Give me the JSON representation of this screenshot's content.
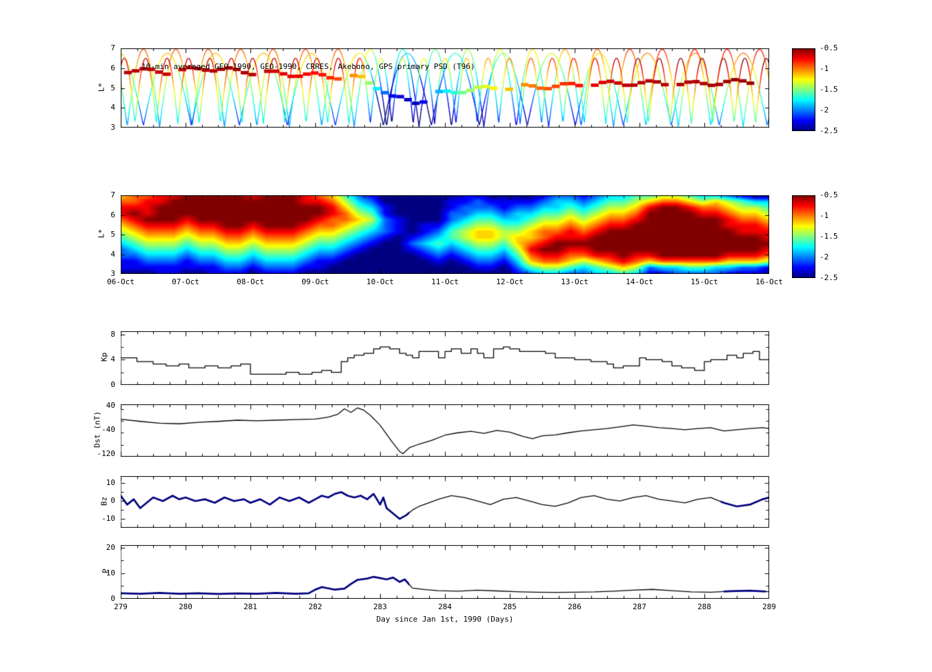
{
  "figure": {
    "xlabel": "Day since Jan 1st, 1990 (Days)",
    "background": "#ffffff"
  },
  "x_axis": {
    "min": 279,
    "max": 289,
    "tick_labels": [
      "279",
      "280",
      "281",
      "282",
      "283",
      "284",
      "285",
      "286",
      "287",
      "288",
      "289"
    ],
    "label": "Day since Jan 1st, 1990 (Days)"
  },
  "colorbar": {
    "min": -2.5,
    "max": -0.5,
    "tick_labels": [
      "-0.5",
      "-1",
      "-1.5",
      "-2",
      "-2.5"
    ],
    "colormap": "jet"
  },
  "chart_data": [
    {
      "id": "psd_orbit_tracks",
      "type": "scatter",
      "title": "10-min averaged GEO-1990, GEO-1990, CRRES, Akebono, GPS  primary PSD (T96)",
      "ylabel": "L*",
      "ylim": [
        3,
        7
      ],
      "yticks": [
        7,
        6,
        5,
        4,
        3
      ],
      "xlim": [
        279,
        289
      ],
      "colormap": "jet",
      "value_range": [
        -2.5,
        -0.5
      ],
      "value_timeline": [
        [
          279,
          0
        ],
        [
          282.6,
          0
        ],
        [
          283.1,
          -0.8
        ],
        [
          283.9,
          -0.6
        ],
        [
          285,
          -0.35
        ],
        [
          286.2,
          -0.1
        ],
        [
          287,
          0.1
        ],
        [
          289,
          0.15
        ]
      ],
      "orbits": [
        {
          "period": 0.5,
          "phase": 279.1,
          "Lmin": 3.05,
          "Lmax": 6.95,
          "vLow": -2.0,
          "vHigh": -0.9
        },
        {
          "period": 0.74,
          "phase": 279.35,
          "Lmin": 3.1,
          "Lmax": 6.75,
          "vLow": -2.2,
          "vHigh": -1.1
        },
        {
          "period": 0.33,
          "phase": 279.22,
          "Lmin": 3.2,
          "Lmax": 6.5,
          "vLow": -1.8,
          "vHigh": -0.6
        }
      ],
      "geo_band": {
        "segments": [
          [
            279.05,
            5.9,
            -0.6
          ],
          [
            279.8,
            5.8,
            -0.65
          ],
          [
            280.3,
            6.0,
            -0.6
          ],
          [
            281.0,
            5.8,
            -0.6
          ],
          [
            281.6,
            5.7,
            -0.7
          ],
          [
            282.2,
            5.6,
            -0.8
          ],
          [
            282.7,
            5.5,
            -1.1
          ],
          [
            283.0,
            5.0,
            -1.9
          ],
          [
            283.2,
            4.5,
            -2.3
          ],
          [
            283.6,
            4.3,
            -2.4
          ],
          [
            283.9,
            4.7,
            -1.9
          ],
          [
            284.3,
            4.9,
            -1.5
          ],
          [
            284.8,
            5.0,
            -1.2
          ],
          [
            285.3,
            5.05,
            -1.0
          ],
          [
            285.8,
            5.1,
            -0.85
          ],
          [
            286.3,
            5.2,
            -0.7
          ],
          [
            287.0,
            5.25,
            -0.6
          ],
          [
            287.8,
            5.2,
            -0.6
          ],
          [
            288.5,
            5.3,
            -0.55
          ],
          [
            289.0,
            5.35,
            -0.55
          ]
        ]
      }
    },
    {
      "id": "psd_interpolated_map",
      "type": "heatmap",
      "ylabel": "L*",
      "ylim": [
        3,
        7
      ],
      "yticks": [
        7,
        6,
        5,
        4,
        3
      ],
      "xlim": [
        279,
        289
      ],
      "colormap": "jet",
      "value_digit_range": [
        -2.5,
        -0.5
      ],
      "x_tick_labels": [
        "06-Oct",
        "07-Oct",
        "08-Oct",
        "09-Oct",
        "10-Oct",
        "11-Oct",
        "12-Oct",
        "13-Oct",
        "14-Oct",
        "15-Oct",
        "16-Oct"
      ],
      "grid_digits": [
        "67788999998999876421000000110000122123344554332100",
        "77889999999999887532000001121111233234456776565433",
        "88899999999999998643100001222122334345568998776554",
        "89899999999999998754100002233233445456679999887665",
        "78999899999999987765210002344334556567789999998776",
        "67888788998999877654210113455445667678899999998887",
        "56777677887888766543210124566556778789999999999888",
        "45666566776777655432101234566566788899999999999998",
        "34555455665666544321002343455467899999999999999999",
        "23444344554555433210001232344358998899999999999998",
        "22333233443444322100000121233247887788988999998887",
        "11222122332333211000000010122136776567876777776665",
        "11111111221222110000000000011024554345652334433221",
        "00011001110111000000000000000012332233431122221110"
      ]
    },
    {
      "id": "kp",
      "type": "line",
      "ylabel": "Kp",
      "ylim": [
        0,
        8.5
      ],
      "yticks": [
        8,
        4,
        0
      ],
      "step": true,
      "points": [
        [
          279.0,
          4.3
        ],
        [
          279.25,
          3.7
        ],
        [
          279.5,
          3.3
        ],
        [
          279.7,
          3.0
        ],
        [
          279.9,
          3.3
        ],
        [
          280.05,
          2.7
        ],
        [
          280.3,
          3.0
        ],
        [
          280.5,
          2.7
        ],
        [
          280.7,
          3.0
        ],
        [
          280.85,
          3.3
        ],
        [
          281.0,
          1.7
        ],
        [
          281.4,
          1.7
        ],
        [
          281.55,
          2.0
        ],
        [
          281.75,
          1.7
        ],
        [
          281.95,
          2.0
        ],
        [
          282.1,
          2.3
        ],
        [
          282.25,
          2.0
        ],
        [
          282.4,
          3.7
        ],
        [
          282.5,
          4.3
        ],
        [
          282.6,
          4.7
        ],
        [
          282.75,
          5.0
        ],
        [
          282.9,
          5.7
        ],
        [
          283.0,
          6.0
        ],
        [
          283.15,
          5.7
        ],
        [
          283.3,
          5.0
        ],
        [
          283.4,
          4.7
        ],
        [
          283.5,
          4.3
        ],
        [
          283.6,
          5.3
        ],
        [
          283.8,
          5.3
        ],
        [
          283.9,
          4.3
        ],
        [
          284.0,
          5.3
        ],
        [
          284.1,
          5.7
        ],
        [
          284.25,
          5.0
        ],
        [
          284.4,
          5.7
        ],
        [
          284.5,
          5.0
        ],
        [
          284.6,
          4.3
        ],
        [
          284.75,
          5.7
        ],
        [
          284.9,
          6.0
        ],
        [
          285.0,
          5.7
        ],
        [
          285.15,
          5.3
        ],
        [
          285.4,
          5.3
        ],
        [
          285.55,
          5.0
        ],
        [
          285.7,
          4.3
        ],
        [
          286.0,
          4.0
        ],
        [
          286.25,
          3.7
        ],
        [
          286.5,
          3.3
        ],
        [
          286.6,
          2.7
        ],
        [
          286.75,
          3.0
        ],
        [
          287.0,
          4.3
        ],
        [
          287.1,
          4.0
        ],
        [
          287.35,
          3.7
        ],
        [
          287.5,
          3.0
        ],
        [
          287.65,
          2.7
        ],
        [
          287.85,
          2.3
        ],
        [
          288.0,
          3.7
        ],
        [
          288.1,
          4.0
        ],
        [
          288.35,
          4.7
        ],
        [
          288.5,
          4.3
        ],
        [
          288.6,
          5.0
        ],
        [
          288.75,
          5.3
        ],
        [
          288.85,
          4.0
        ],
        [
          289.0,
          4.3
        ]
      ]
    },
    {
      "id": "dst",
      "type": "line",
      "ylabel": "Dst (nT)",
      "ylim": [
        -130,
        45
      ],
      "yticks": [
        40,
        -40,
        -120
      ],
      "step": false,
      "points": [
        [
          279.0,
          -5
        ],
        [
          279.3,
          -12
        ],
        [
          279.6,
          -18
        ],
        [
          279.9,
          -20
        ],
        [
          280.2,
          -15
        ],
        [
          280.5,
          -12
        ],
        [
          280.8,
          -8
        ],
        [
          281.1,
          -10
        ],
        [
          281.4,
          -8
        ],
        [
          281.7,
          -6
        ],
        [
          282.0,
          -4
        ],
        [
          282.2,
          2
        ],
        [
          282.35,
          12
        ],
        [
          282.45,
          30
        ],
        [
          282.55,
          18
        ],
        [
          282.65,
          33
        ],
        [
          282.75,
          25
        ],
        [
          282.85,
          8
        ],
        [
          283.0,
          -25
        ],
        [
          283.1,
          -55
        ],
        [
          283.2,
          -85
        ],
        [
          283.3,
          -112
        ],
        [
          283.35,
          -120
        ],
        [
          283.45,
          -100
        ],
        [
          283.6,
          -88
        ],
        [
          283.8,
          -75
        ],
        [
          284.0,
          -58
        ],
        [
          284.2,
          -50
        ],
        [
          284.4,
          -45
        ],
        [
          284.6,
          -52
        ],
        [
          284.8,
          -42
        ],
        [
          285.0,
          -48
        ],
        [
          285.2,
          -62
        ],
        [
          285.35,
          -70
        ],
        [
          285.5,
          -60
        ],
        [
          285.7,
          -57
        ],
        [
          285.9,
          -50
        ],
        [
          286.1,
          -44
        ],
        [
          286.3,
          -40
        ],
        [
          286.5,
          -36
        ],
        [
          286.7,
          -30
        ],
        [
          286.9,
          -24
        ],
        [
          287.1,
          -28
        ],
        [
          287.3,
          -33
        ],
        [
          287.5,
          -36
        ],
        [
          287.7,
          -40
        ],
        [
          287.9,
          -36
        ],
        [
          288.1,
          -33
        ],
        [
          288.3,
          -44
        ],
        [
          288.5,
          -40
        ],
        [
          288.7,
          -36
        ],
        [
          288.9,
          -33
        ],
        [
          289.0,
          -36
        ]
      ]
    },
    {
      "id": "bz",
      "type": "line",
      "ylabel": "Bz",
      "ylim": [
        -15,
        14
      ],
      "yticks": [
        10,
        0,
        -10
      ],
      "step": false,
      "thick_color": "#000080",
      "thick_ranges": [
        [
          279.0,
          283.45
        ],
        [
          288.25,
          289.0
        ]
      ],
      "points": [
        [
          279.0,
          3
        ],
        [
          279.1,
          -2
        ],
        [
          279.2,
          1
        ],
        [
          279.3,
          -4
        ],
        [
          279.4,
          -1
        ],
        [
          279.5,
          2
        ],
        [
          279.65,
          0
        ],
        [
          279.8,
          3
        ],
        [
          279.9,
          1
        ],
        [
          280.0,
          2
        ],
        [
          280.15,
          0
        ],
        [
          280.3,
          1
        ],
        [
          280.45,
          -1
        ],
        [
          280.6,
          2
        ],
        [
          280.75,
          0
        ],
        [
          280.9,
          1
        ],
        [
          281.0,
          -1
        ],
        [
          281.15,
          1
        ],
        [
          281.3,
          -2
        ],
        [
          281.45,
          2
        ],
        [
          281.6,
          0
        ],
        [
          281.75,
          2
        ],
        [
          281.9,
          -1
        ],
        [
          282.0,
          1
        ],
        [
          282.1,
          3
        ],
        [
          282.2,
          2
        ],
        [
          282.3,
          4
        ],
        [
          282.4,
          5
        ],
        [
          282.5,
          3
        ],
        [
          282.6,
          2
        ],
        [
          282.7,
          3
        ],
        [
          282.8,
          1
        ],
        [
          282.9,
          4
        ],
        [
          283.0,
          -2
        ],
        [
          283.05,
          2
        ],
        [
          283.1,
          -4
        ],
        [
          283.2,
          -7
        ],
        [
          283.3,
          -10
        ],
        [
          283.4,
          -8
        ],
        [
          283.5,
          -5
        ],
        [
          283.6,
          -3
        ],
        [
          283.75,
          -1
        ],
        [
          283.9,
          1
        ],
        [
          284.1,
          3
        ],
        [
          284.3,
          2
        ],
        [
          284.5,
          0
        ],
        [
          284.7,
          -2
        ],
        [
          284.9,
          1
        ],
        [
          285.1,
          2
        ],
        [
          285.3,
          0
        ],
        [
          285.5,
          -2
        ],
        [
          285.7,
          -3
        ],
        [
          285.9,
          -1
        ],
        [
          286.1,
          2
        ],
        [
          286.3,
          3
        ],
        [
          286.5,
          1
        ],
        [
          286.7,
          0
        ],
        [
          286.9,
          2
        ],
        [
          287.1,
          3
        ],
        [
          287.3,
          1
        ],
        [
          287.5,
          0
        ],
        [
          287.7,
          -1
        ],
        [
          287.9,
          1
        ],
        [
          288.1,
          2
        ],
        [
          288.3,
          -1
        ],
        [
          288.5,
          -3
        ],
        [
          288.7,
          -2
        ],
        [
          288.9,
          1
        ],
        [
          289.0,
          2
        ]
      ]
    },
    {
      "id": "p",
      "type": "line",
      "ylabel": "P",
      "ylim": [
        0,
        21
      ],
      "yticks": [
        20,
        10,
        0
      ],
      "step": false,
      "thick_color": "#000080",
      "thick_ranges": [
        [
          279.0,
          283.45
        ],
        [
          288.3,
          288.95
        ]
      ],
      "points": [
        [
          279.0,
          2.2
        ],
        [
          279.3,
          2.0
        ],
        [
          279.6,
          2.3
        ],
        [
          279.9,
          2.0
        ],
        [
          280.2,
          2.2
        ],
        [
          280.5,
          1.9
        ],
        [
          280.8,
          2.1
        ],
        [
          281.1,
          2.0
        ],
        [
          281.4,
          2.3
        ],
        [
          281.7,
          2.0
        ],
        [
          281.9,
          2.2
        ],
        [
          282.0,
          3.6
        ],
        [
          282.1,
          4.6
        ],
        [
          282.2,
          4.1
        ],
        [
          282.3,
          3.6
        ],
        [
          282.45,
          4.0
        ],
        [
          282.55,
          5.8
        ],
        [
          282.65,
          7.4
        ],
        [
          282.8,
          7.9
        ],
        [
          282.9,
          8.6
        ],
        [
          283.0,
          8.1
        ],
        [
          283.1,
          7.6
        ],
        [
          283.2,
          8.3
        ],
        [
          283.3,
          6.6
        ],
        [
          283.38,
          7.6
        ],
        [
          283.5,
          4.2
        ],
        [
          283.7,
          3.6
        ],
        [
          283.9,
          3.2
        ],
        [
          284.2,
          3.0
        ],
        [
          284.5,
          3.4
        ],
        [
          284.8,
          3.1
        ],
        [
          285.1,
          2.8
        ],
        [
          285.4,
          2.6
        ],
        [
          285.7,
          2.5
        ],
        [
          286.0,
          2.6
        ],
        [
          286.3,
          2.7
        ],
        [
          286.6,
          3.0
        ],
        [
          286.9,
          3.4
        ],
        [
          287.2,
          3.7
        ],
        [
          287.5,
          3.2
        ],
        [
          287.8,
          2.7
        ],
        [
          288.1,
          2.6
        ],
        [
          288.4,
          3.0
        ],
        [
          288.7,
          3.2
        ],
        [
          289.0,
          2.8
        ]
      ]
    }
  ]
}
